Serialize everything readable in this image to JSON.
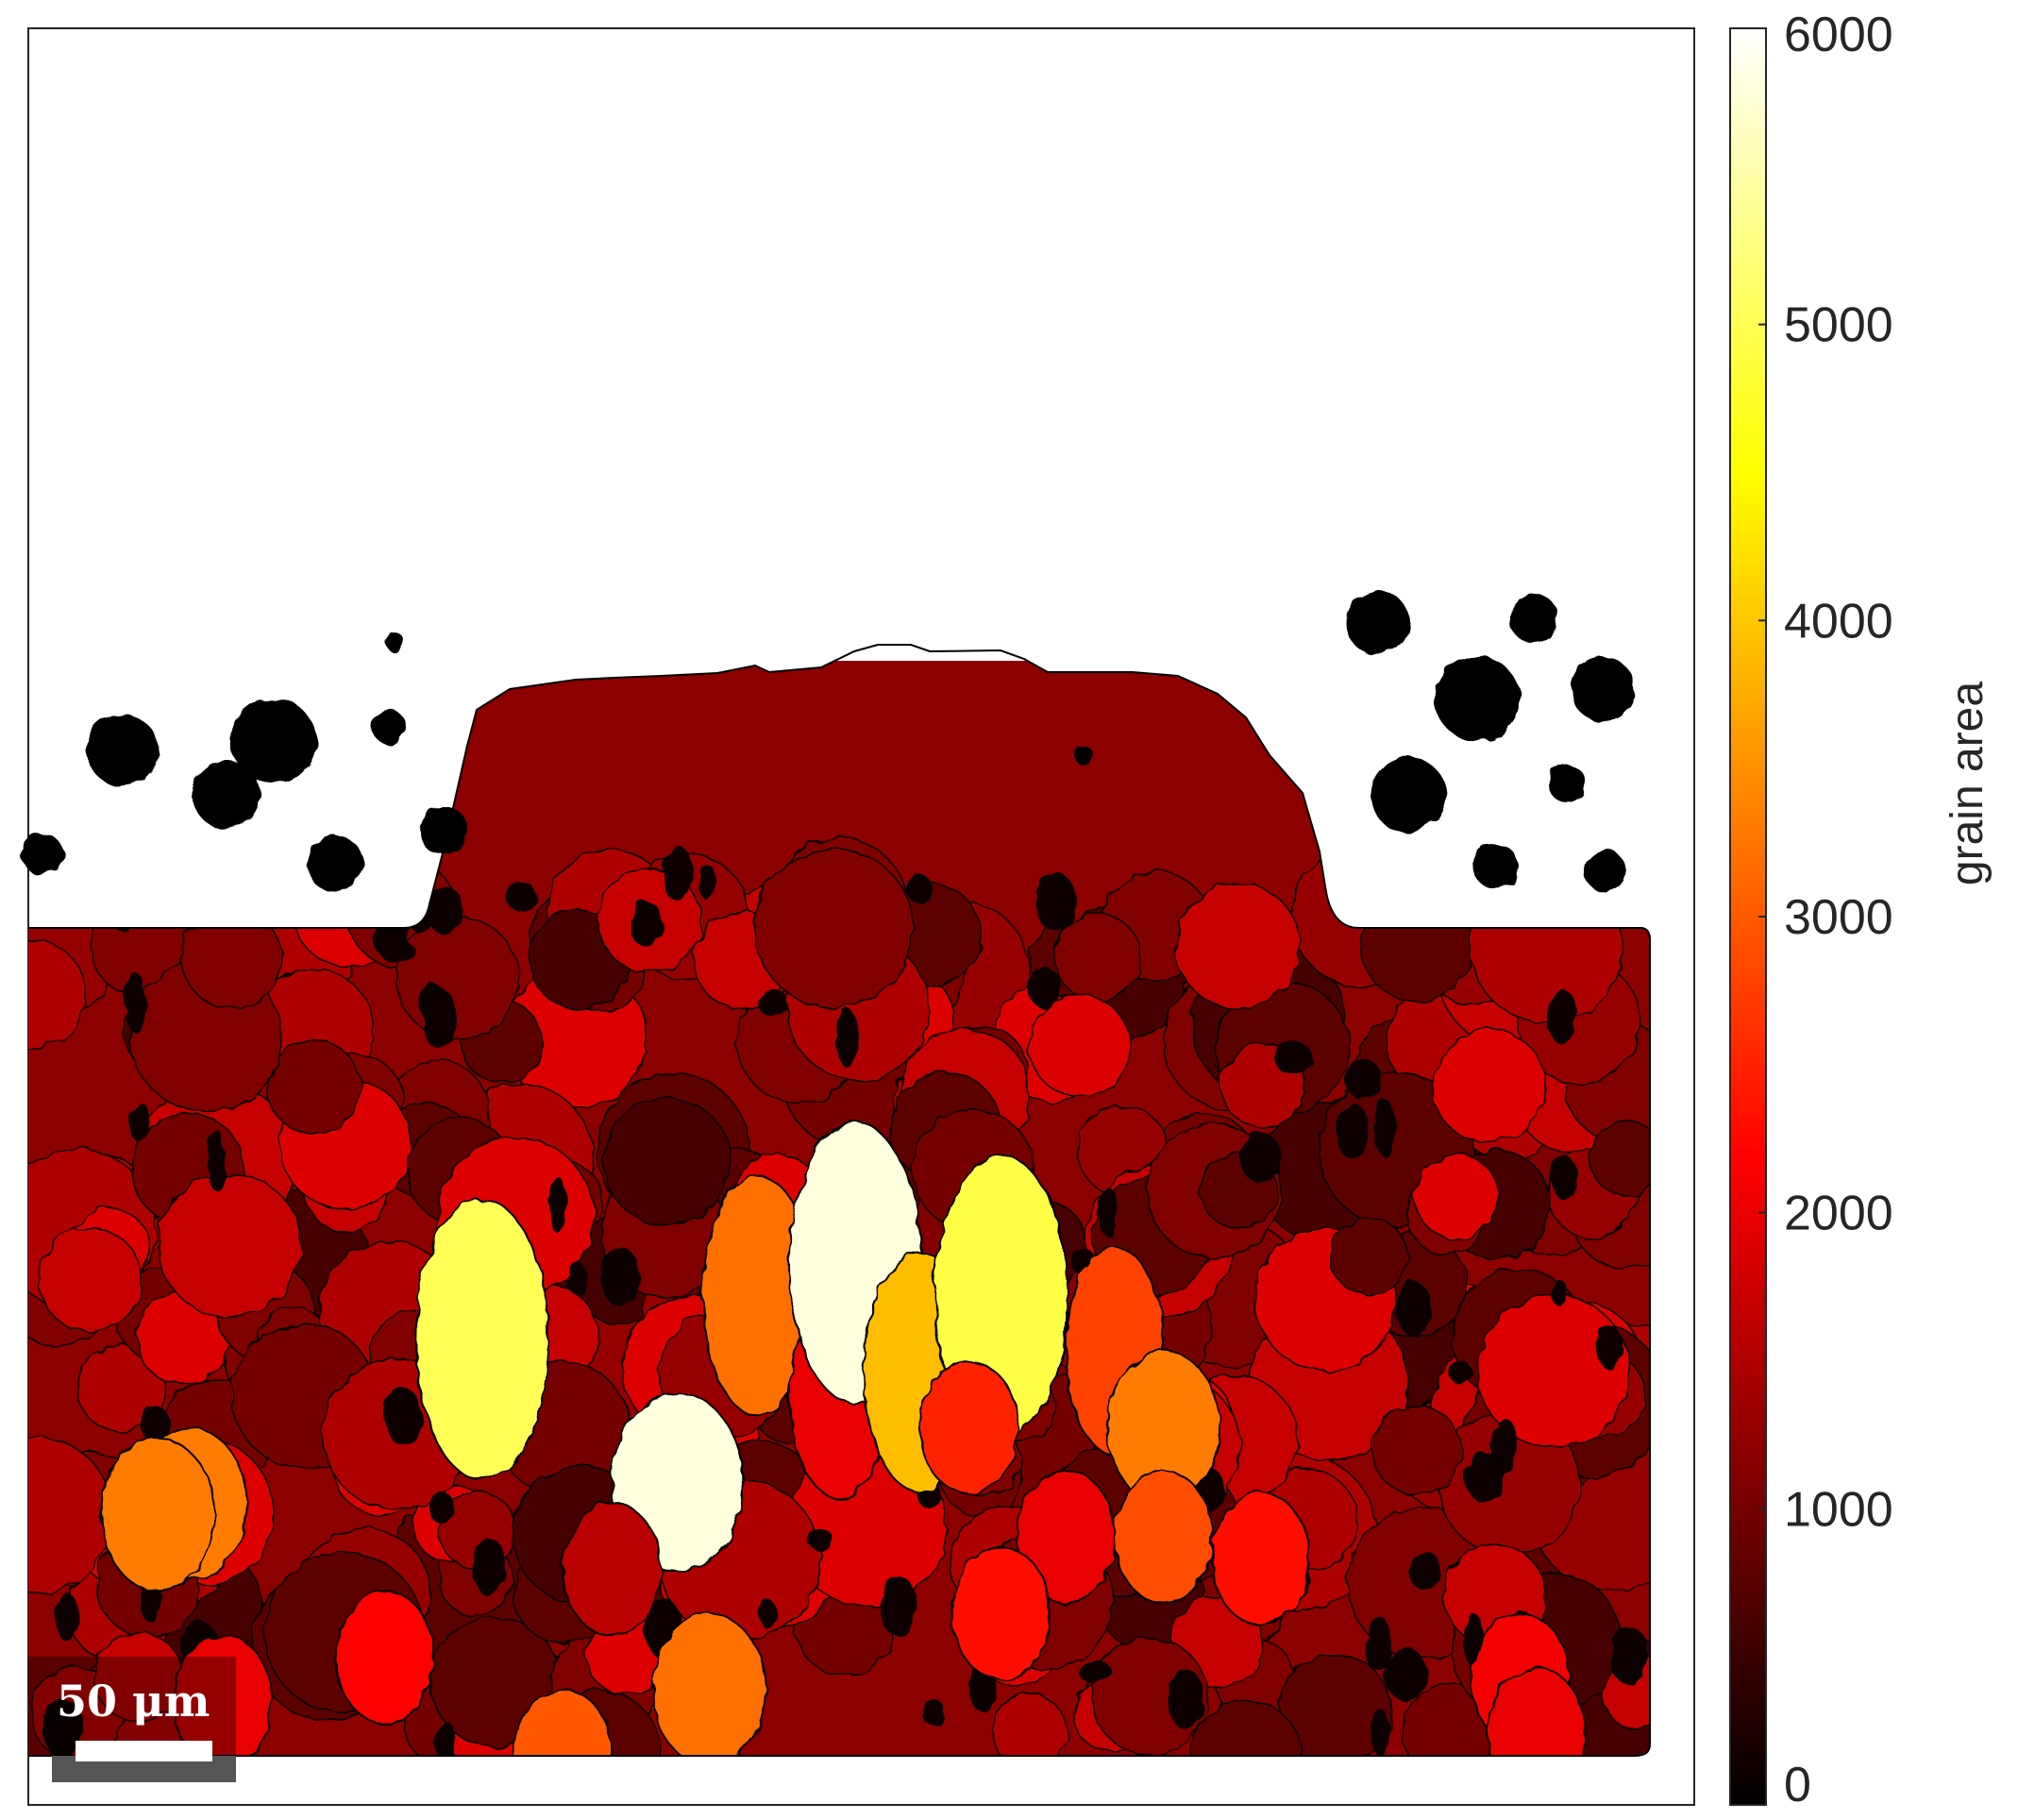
{
  "chart_data": {
    "type": "heatmap",
    "title": "",
    "colormap": "hot",
    "colorbar": {
      "label": "grain area",
      "range": [
        0,
        6000
      ],
      "ticks": [
        "0",
        "1000",
        "2000",
        "3000",
        "4000",
        "5000",
        "6000"
      ]
    },
    "scale_bar": {
      "label": "50 μm",
      "length_um": 50
    },
    "grain_fields": [
      {
        "x": 0.1,
        "y": 0.77,
        "value": 3300
      },
      {
        "x": 0.28,
        "y": 0.62,
        "value": 5000
      },
      {
        "x": 0.4,
        "y": 0.75,
        "value": 5800
      },
      {
        "x": 0.45,
        "y": 0.58,
        "value": 3200
      },
      {
        "x": 0.5,
        "y": 0.67,
        "value": 2000
      },
      {
        "x": 0.51,
        "y": 0.55,
        "value": 5800
      },
      {
        "x": 0.55,
        "y": 0.65,
        "value": 3900
      },
      {
        "x": 0.6,
        "y": 0.58,
        "value": 4900
      },
      {
        "x": 0.67,
        "y": 0.63,
        "value": 2800
      },
      {
        "x": 0.7,
        "y": 0.7,
        "value": 3300
      },
      {
        "x": 0.36,
        "y": 0.83,
        "value": 1600
      },
      {
        "x": 0.64,
        "y": 0.8,
        "value": 2000
      },
      {
        "x": 0.7,
        "y": 0.8,
        "value": 2900
      },
      {
        "x": 0.6,
        "y": 0.87,
        "value": 2300
      },
      {
        "x": 0.76,
        "y": 0.82,
        "value": 2300
      },
      {
        "x": 0.22,
        "y": 0.91,
        "value": 2200
      },
      {
        "x": 0.42,
        "y": 0.94,
        "value": 3200
      },
      {
        "x": 0.33,
        "y": 1.0,
        "value": 3000
      },
      {
        "x": 0.12,
        "y": 0.95,
        "value": 2000
      },
      {
        "x": 0.92,
        "y": 0.93,
        "value": 2100
      },
      {
        "x": 0.93,
        "y": 0.98,
        "value": 2000
      },
      {
        "x": 0.58,
        "y": 0.7,
        "value": 2500
      },
      {
        "x": 0.08,
        "y": 0.78,
        "value": 3300
      }
    ]
  }
}
